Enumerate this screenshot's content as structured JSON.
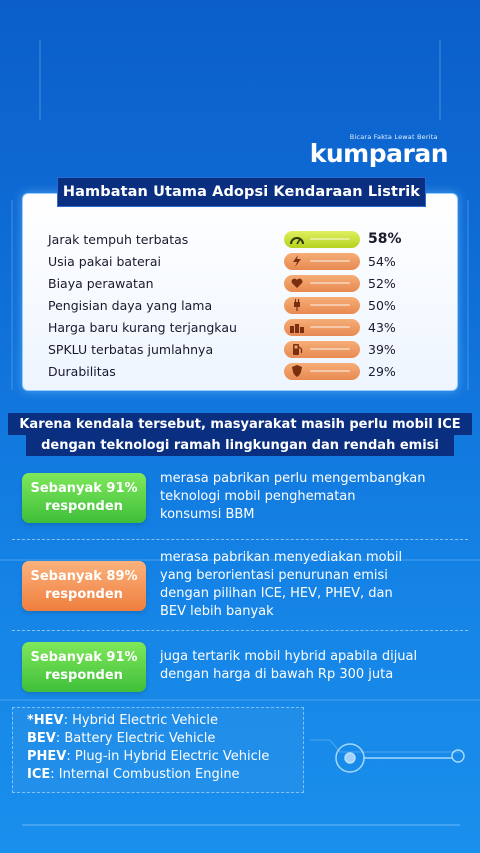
{
  "brand": {
    "tagline": "Bicara Fakta Lewat Berita",
    "name": "kumparan"
  },
  "panel1": {
    "title": "Hambatan Utama Adopsi Kendaraan Listrik",
    "rows": [
      {
        "label": "Jarak tempuh terbatas",
        "value": "58%",
        "fraction": 0.58,
        "icon": "gauge-icon",
        "highlight": true
      },
      {
        "label": "Usia pakai baterai",
        "value": "54%",
        "fraction": 0.54,
        "icon": "lightning-icon"
      },
      {
        "label": "Biaya perawatan",
        "value": "52%",
        "fraction": 0.52,
        "icon": "heart-icon"
      },
      {
        "label": "Pengisian daya yang lama",
        "value": "50%",
        "fraction": 0.5,
        "icon": "plug-icon"
      },
      {
        "label": "Harga baru kurang terjangkau",
        "value": "43%",
        "fraction": 0.43,
        "icon": "coins-icon"
      },
      {
        "label": "SPKLU terbatas jumlahnya",
        "value": "39%",
        "fraction": 0.39,
        "icon": "fuel-icon"
      },
      {
        "label": "Durabilitas",
        "value": "29%",
        "fraction": 0.29,
        "icon": "shield-icon"
      }
    ],
    "colors": {
      "highlight": "#c8e03a",
      "bar": "#f09a62"
    }
  },
  "banner": {
    "line1": "Karena kendala tersebut, masyarakat masih perlu mobil ICE",
    "line2": "dengan teknologi ramah lingkungan dan rendah emisi"
  },
  "stats": [
    {
      "prefix": "Sebanyak",
      "pct": "91%",
      "suffix": "responden",
      "color": "green",
      "lines": [
        "merasa pabrikan perlu mengembangkan",
        "teknologi mobil penghematan",
        "konsumsi BBM"
      ]
    },
    {
      "prefix": "Sebanyak",
      "pct": "89%",
      "suffix": "responden",
      "color": "orange",
      "lines": [
        "merasa pabrikan menyediakan mobil",
        "yang berorientasi penurunan emisi",
        "dengan pilihan ICE, HEV, PHEV, dan",
        "BEV lebih banyak"
      ]
    },
    {
      "prefix": "Sebanyak",
      "pct": "91%",
      "suffix": "responden",
      "color": "green",
      "lines": [
        "juga tertarik mobil hybrid apabila dijual",
        "dengan harga di bawah Rp 300 juta"
      ]
    }
  ],
  "footnote": [
    {
      "abbr": "*HEV",
      "text": ": Hybrid Electric Vehicle"
    },
    {
      "abbr": " BEV",
      "text": ": Battery Electric Vehicle"
    },
    {
      "abbr": " PHEV",
      "text": ": Plug-in Hybrid Electric Vehicle"
    },
    {
      "abbr": " ICE",
      "text": ": Internal Combustion Engine"
    }
  ]
}
